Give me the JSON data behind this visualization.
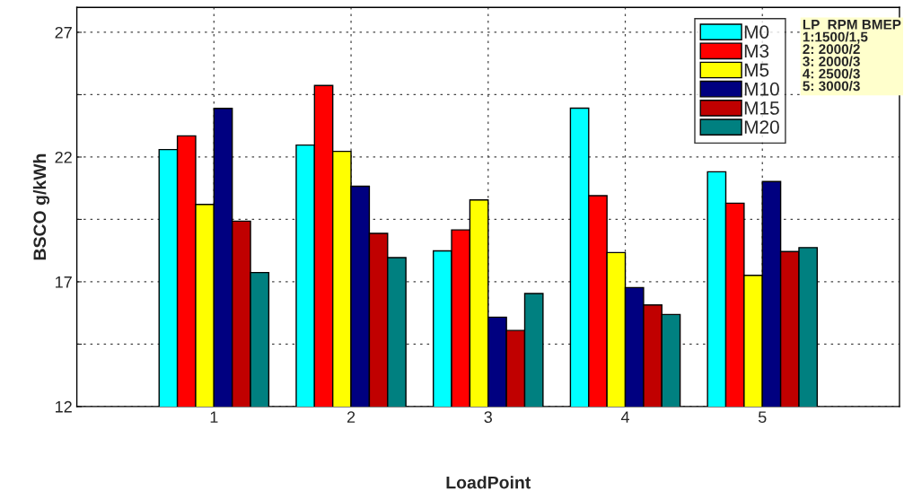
{
  "chart_data": {
    "type": "bar",
    "xlabel": "LoadPoint",
    "ylabel": "BSCO g/kWh",
    "categories": [
      "1",
      "2",
      "3",
      "4",
      "5"
    ],
    "series": [
      {
        "name": "M0",
        "color": "#00ffff",
        "values": [
          22.3,
          22.48,
          18.24,
          23.96,
          21.41
        ]
      },
      {
        "name": "M3",
        "color": "#ff0000",
        "values": [
          22.85,
          24.87,
          19.08,
          20.45,
          20.15
        ]
      },
      {
        "name": "M5",
        "color": "#ffff00",
        "values": [
          20.1,
          22.23,
          20.28,
          18.17,
          17.26
        ]
      },
      {
        "name": "M10",
        "color": "#000080",
        "values": [
          23.95,
          20.83,
          15.58,
          16.77,
          21.02
        ]
      },
      {
        "name": "M15",
        "color": "#c00000",
        "values": [
          19.43,
          18.94,
          15.05,
          16.07,
          18.21
        ]
      },
      {
        "name": "M20",
        "color": "#008080",
        "values": [
          17.37,
          17.97,
          16.53,
          15.69,
          18.37
        ]
      }
    ],
    "ylim": [
      12,
      28
    ],
    "yticks": [
      12,
      {
        "value": 14.5,
        "label": null
      },
      17,
      {
        "value": 19.5,
        "label": null
      },
      22,
      {
        "value": 24.5,
        "label": null
      },
      27
    ],
    "grid": true,
    "legend": "top right",
    "annotations": [
      "LP  RPM BMEP\n1:1500/1,5\n2: 2000/2\n3: 2000/3\n4: 2500/3\n5: 3000/3"
    ]
  }
}
